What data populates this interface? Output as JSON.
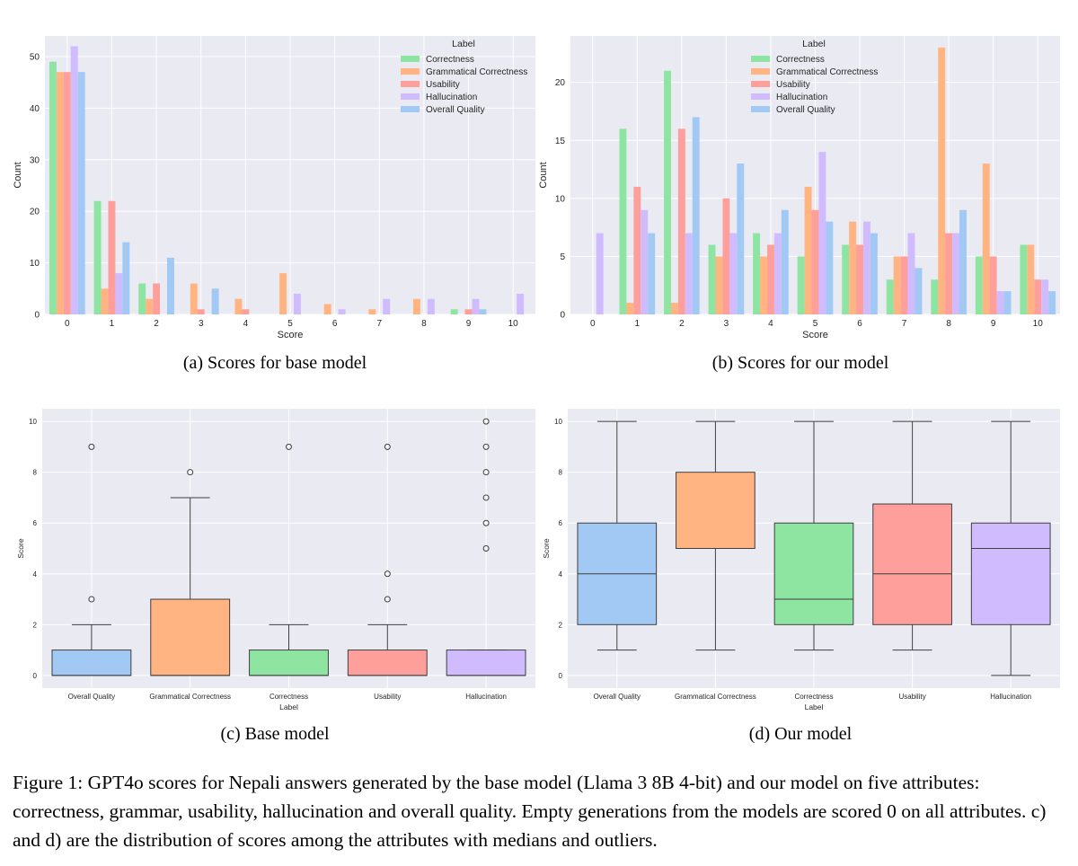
{
  "colors": {
    "Correctness": "#8de5a1",
    "Grammatical Correctness": "#ffb482",
    "Usability": "#ff9f9b",
    "Hallucination": "#d0bbff",
    "Overall Quality": "#a1c9f4",
    "plot_bg": "#eaeaf2",
    "grid": "#ffffff",
    "text": "#262626"
  },
  "chart_data": [
    {
      "id": "a",
      "type": "bar",
      "title": "",
      "xlabel": "Score",
      "ylabel": "Count",
      "ylim": [
        0,
        54
      ],
      "yticks": [
        0,
        10,
        20,
        30,
        40,
        50
      ],
      "categories": [
        "0",
        "1",
        "2",
        "3",
        "4",
        "5",
        "6",
        "7",
        "8",
        "9",
        "10"
      ],
      "legend_title": "Label",
      "legend_position": "top-right",
      "series": [
        {
          "name": "Correctness",
          "values": [
            49,
            22,
            6,
            0,
            0,
            0,
            0,
            0,
            0,
            1,
            0
          ]
        },
        {
          "name": "Grammatical Correctness",
          "values": [
            47,
            5,
            3,
            6,
            3,
            8,
            2,
            1,
            3,
            0,
            0
          ]
        },
        {
          "name": "Usability",
          "values": [
            47,
            22,
            6,
            1,
            1,
            0,
            0,
            0,
            0,
            1,
            0
          ]
        },
        {
          "name": "Hallucination",
          "values": [
            52,
            8,
            0,
            0,
            0,
            4,
            1,
            3,
            3,
            3,
            4
          ]
        },
        {
          "name": "Overall Quality",
          "values": [
            47,
            14,
            11,
            5,
            0,
            0,
            0,
            0,
            0,
            1,
            0
          ]
        }
      ]
    },
    {
      "id": "b",
      "type": "bar",
      "title": "",
      "xlabel": "Score",
      "ylabel": "Count",
      "ylim": [
        0,
        24
      ],
      "yticks": [
        0,
        5,
        10,
        15,
        20
      ],
      "categories": [
        "0",
        "1",
        "2",
        "3",
        "4",
        "5",
        "6",
        "7",
        "8",
        "9",
        "10"
      ],
      "legend_title": "Label",
      "legend_position": "top-center",
      "series": [
        {
          "name": "Correctness",
          "values": [
            0,
            16,
            21,
            6,
            7,
            5,
            6,
            3,
            3,
            5,
            6
          ]
        },
        {
          "name": "Grammatical Correctness",
          "values": [
            0,
            1,
            1,
            5,
            5,
            11,
            8,
            5,
            23,
            13,
            6
          ]
        },
        {
          "name": "Usability",
          "values": [
            0,
            11,
            16,
            10,
            6,
            9,
            6,
            5,
            7,
            5,
            3
          ]
        },
        {
          "name": "Hallucination",
          "values": [
            7,
            9,
            7,
            7,
            7,
            14,
            8,
            7,
            7,
            2,
            3
          ]
        },
        {
          "name": "Overall Quality",
          "values": [
            0,
            7,
            17,
            13,
            9,
            8,
            7,
            4,
            9,
            2,
            2
          ]
        }
      ]
    },
    {
      "id": "c",
      "type": "box",
      "title": "",
      "xlabel": "Label",
      "ylabel": "Score",
      "ylim": [
        -0.5,
        10.5
      ],
      "yticks": [
        0,
        2,
        4,
        6,
        8,
        10
      ],
      "boxes": [
        {
          "label": "Overall Quality",
          "q1": 0,
          "median": 0,
          "q3": 1,
          "whisker_low": 0,
          "whisker_high": 2,
          "outliers": [
            3,
            9
          ]
        },
        {
          "label": "Grammatical Correctness",
          "q1": 0,
          "median": 0,
          "q3": 3,
          "whisker_low": 0,
          "whisker_high": 7,
          "outliers": [
            8
          ]
        },
        {
          "label": "Correctness",
          "q1": 0,
          "median": 0,
          "q3": 1,
          "whisker_low": 0,
          "whisker_high": 2,
          "outliers": [
            9
          ]
        },
        {
          "label": "Usability",
          "q1": 0,
          "median": 0,
          "q3": 1,
          "whisker_low": 0,
          "whisker_high": 2,
          "outliers": [
            3,
            4,
            9
          ]
        },
        {
          "label": "Hallucination",
          "q1": 0,
          "median": 0,
          "q3": 1,
          "whisker_low": 0,
          "whisker_high": 1,
          "outliers": [
            5,
            6,
            7,
            8,
            9,
            10
          ]
        }
      ]
    },
    {
      "id": "d",
      "type": "box",
      "title": "",
      "xlabel": "Label",
      "ylabel": "Score",
      "ylim": [
        -0.5,
        10.5
      ],
      "yticks": [
        0,
        2,
        4,
        6,
        8,
        10
      ],
      "boxes": [
        {
          "label": "Overall Quality",
          "q1": 2,
          "median": 4,
          "q3": 6,
          "whisker_low": 1,
          "whisker_high": 10,
          "outliers": []
        },
        {
          "label": "Grammatical Correctness",
          "q1": 5,
          "median": 5,
          "q3": 8,
          "whisker_low": 1,
          "whisker_high": 10,
          "outliers": []
        },
        {
          "label": "Correctness",
          "q1": 2,
          "median": 3,
          "q3": 6,
          "whisker_low": 1,
          "whisker_high": 10,
          "outliers": []
        },
        {
          "label": "Usability",
          "q1": 2,
          "median": 4,
          "q3": 6.75,
          "whisker_low": 1,
          "whisker_high": 10,
          "outliers": []
        },
        {
          "label": "Hallucination",
          "q1": 2,
          "median": 5,
          "q3": 6,
          "whisker_low": 0,
          "whisker_high": 10,
          "outliers": []
        }
      ]
    }
  ],
  "captions": {
    "a": "(a) Scores for base model",
    "b": "(b) Scores for our model",
    "c": "(c) Base model",
    "d": "(d) Our model"
  },
  "figure_caption": "Figure 1: GPT4o scores for Nepali answers generated by the base model (Llama 3 8B 4-bit) and our model on five attributes: correctness, grammar, usability, hallucination and overall quality. Empty generations from the models are scored 0 on all attributes. c) and d) are the distribution of scores among the attributes with medians and outliers."
}
